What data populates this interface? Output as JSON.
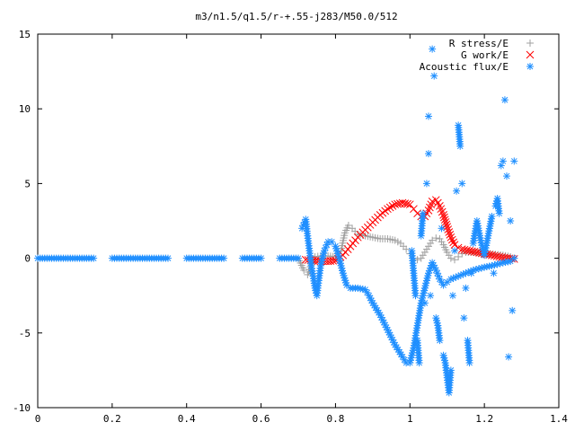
{
  "chart_data": {
    "type": "scatter",
    "title": "m3/n1.5/q1.5/r-+.55-j283/M50.0/512",
    "xlabel": "",
    "ylabel": "",
    "xlim": [
      0,
      1.4
    ],
    "ylim": [
      -10,
      15
    ],
    "x_ticks": [
      0,
      0.2,
      0.4,
      0.6,
      0.8,
      1,
      1.2,
      1.4
    ],
    "x_tick_labels": [
      "0",
      "0.2",
      "0.4",
      "0.6",
      "0.8",
      "1",
      "1.2",
      "1.4"
    ],
    "y_ticks": [
      -10,
      -5,
      0,
      5,
      10,
      15
    ],
    "y_tick_labels": [
      "-10",
      "-5",
      "0",
      "5",
      "10",
      "15"
    ],
    "grid": false,
    "legend_position": "top-right",
    "series": [
      {
        "name": "R stress/E",
        "marker": "plus",
        "color": "#a0a0a0",
        "points": [
          [
            0.7,
            0.0
          ],
          [
            0.715,
            -0.8
          ],
          [
            0.725,
            -1.1
          ],
          [
            0.735,
            -0.4
          ],
          [
            0.745,
            0.1
          ],
          [
            0.76,
            0.15
          ],
          [
            0.78,
            0.15
          ],
          [
            0.8,
            0.1
          ],
          [
            0.815,
            0.5
          ],
          [
            0.825,
            1.7
          ],
          [
            0.835,
            2.2
          ],
          [
            0.845,
            2.0
          ],
          [
            0.86,
            1.6
          ],
          [
            0.88,
            1.5
          ],
          [
            0.9,
            1.4
          ],
          [
            0.92,
            1.3
          ],
          [
            0.94,
            1.3
          ],
          [
            0.96,
            1.2
          ],
          [
            0.975,
            1.0
          ],
          [
            0.99,
            0.6
          ],
          [
            1.0,
            0.3
          ],
          [
            1.01,
            0.0
          ],
          [
            1.02,
            -0.1
          ],
          [
            1.03,
            0.0
          ],
          [
            1.04,
            0.4
          ],
          [
            1.05,
            0.8
          ],
          [
            1.06,
            1.2
          ],
          [
            1.07,
            1.35
          ],
          [
            1.08,
            1.3
          ],
          [
            1.09,
            0.9
          ],
          [
            1.1,
            0.4
          ],
          [
            1.11,
            0.0
          ],
          [
            1.12,
            -0.1
          ],
          [
            1.13,
            0.1
          ],
          [
            1.14,
            0.3
          ],
          [
            1.15,
            0.4
          ],
          [
            1.17,
            0.4
          ],
          [
            1.19,
            0.35
          ],
          [
            1.21,
            0.3
          ],
          [
            1.23,
            0.25
          ],
          [
            1.25,
            0.2
          ],
          [
            1.27,
            0.1
          ],
          [
            1.28,
            0.0
          ]
        ]
      },
      {
        "name": "G work/E",
        "marker": "cross",
        "color": "#ff0000",
        "points": [
          [
            0.72,
            -0.1
          ],
          [
            0.74,
            -0.15
          ],
          [
            0.76,
            -0.2
          ],
          [
            0.78,
            -0.2
          ],
          [
            0.8,
            -0.15
          ],
          [
            0.82,
            0.2
          ],
          [
            0.84,
            0.8
          ],
          [
            0.86,
            1.4
          ],
          [
            0.88,
            1.9
          ],
          [
            0.9,
            2.4
          ],
          [
            0.92,
            2.9
          ],
          [
            0.94,
            3.3
          ],
          [
            0.96,
            3.6
          ],
          [
            0.98,
            3.7
          ],
          [
            1.0,
            3.6
          ],
          [
            1.01,
            3.3
          ],
          [
            1.02,
            3.0
          ],
          [
            1.03,
            2.8
          ],
          [
            1.04,
            2.8
          ],
          [
            1.05,
            3.2
          ],
          [
            1.06,
            3.8
          ],
          [
            1.07,
            3.9
          ],
          [
            1.08,
            3.5
          ],
          [
            1.09,
            2.9
          ],
          [
            1.1,
            2.1
          ],
          [
            1.11,
            1.4
          ],
          [
            1.12,
            0.9
          ],
          [
            1.13,
            0.7
          ],
          [
            1.14,
            0.6
          ],
          [
            1.16,
            0.5
          ],
          [
            1.18,
            0.4
          ],
          [
            1.2,
            0.3
          ],
          [
            1.22,
            0.2
          ],
          [
            1.24,
            0.1
          ],
          [
            1.26,
            0.0
          ],
          [
            1.28,
            -0.05
          ]
        ]
      },
      {
        "name": "Acoustic flux/E",
        "marker": "star",
        "color": "#1f8fff",
        "points": [
          [
            0.0,
            0.0
          ],
          [
            0.05,
            0.0
          ],
          [
            0.1,
            0.0
          ],
          [
            0.15,
            0.0
          ],
          [
            0.2,
            0.0
          ],
          [
            0.25,
            0.0
          ],
          [
            0.3,
            0.0
          ],
          [
            0.35,
            0.0
          ],
          [
            0.4,
            0.0
          ],
          [
            0.45,
            0.0
          ],
          [
            0.5,
            0.0
          ],
          [
            0.55,
            0.0
          ],
          [
            0.6,
            0.0
          ],
          [
            0.65,
            0.0
          ],
          [
            0.7,
            0.0
          ],
          [
            0.71,
            2.0
          ],
          [
            0.72,
            2.6
          ],
          [
            0.725,
            1.5
          ],
          [
            0.73,
            0.5
          ],
          [
            0.735,
            -0.5
          ],
          [
            0.74,
            -1.2
          ],
          [
            0.745,
            -2.0
          ],
          [
            0.75,
            -2.5
          ],
          [
            0.755,
            -1.5
          ],
          [
            0.76,
            -0.5
          ],
          [
            0.77,
            0.5
          ],
          [
            0.78,
            1.1
          ],
          [
            0.79,
            1.1
          ],
          [
            0.8,
            0.8
          ],
          [
            0.81,
            0.0
          ],
          [
            0.82,
            -1.0
          ],
          [
            0.83,
            -1.8
          ],
          [
            0.84,
            -2.0
          ],
          [
            0.86,
            -2.0
          ],
          [
            0.88,
            -2.1
          ],
          [
            0.89,
            -2.5
          ],
          [
            0.9,
            -3.0
          ],
          [
            0.92,
            -3.8
          ],
          [
            0.94,
            -4.8
          ],
          [
            0.96,
            -5.8
          ],
          [
            0.98,
            -6.6
          ],
          [
            0.99,
            -7.0
          ],
          [
            1.0,
            -7.0
          ],
          [
            1.01,
            -6.0
          ],
          [
            1.02,
            -4.5
          ],
          [
            1.03,
            -3.0
          ],
          [
            1.04,
            -2.0
          ],
          [
            1.05,
            -1.0
          ],
          [
            1.06,
            -0.3
          ],
          [
            1.07,
            -0.8
          ],
          [
            1.08,
            -1.4
          ],
          [
            1.09,
            -1.8
          ],
          [
            1.1,
            -1.6
          ],
          [
            1.11,
            -1.4
          ],
          [
            1.13,
            -1.2
          ],
          [
            1.15,
            -1.0
          ],
          [
            1.17,
            -0.8
          ],
          [
            1.2,
            -0.6
          ],
          [
            1.22,
            -0.5
          ],
          [
            1.25,
            -0.3
          ],
          [
            1.27,
            -0.2
          ],
          [
            1.28,
            0.0
          ],
          [
            1.005,
            0.5
          ],
          [
            1.01,
            -1.0
          ],
          [
            1.015,
            -2.5
          ],
          [
            1.02,
            -5.5
          ],
          [
            1.025,
            -7.0
          ],
          [
            1.03,
            1.5
          ],
          [
            1.035,
            3.0
          ],
          [
            1.04,
            -3.0
          ],
          [
            1.045,
            5.0
          ],
          [
            1.05,
            9.5
          ],
          [
            1.05,
            7.0
          ],
          [
            1.055,
            -2.5
          ],
          [
            1.06,
            14.0
          ],
          [
            1.065,
            12.2
          ],
          [
            1.07,
            -4.0
          ],
          [
            1.075,
            -4.5
          ],
          [
            1.08,
            -5.5
          ],
          [
            1.085,
            2.0
          ],
          [
            1.09,
            -6.5
          ],
          [
            1.095,
            -7.0
          ],
          [
            1.1,
            -8.0
          ],
          [
            1.105,
            -9.0
          ],
          [
            1.11,
            -7.5
          ],
          [
            1.115,
            -2.5
          ],
          [
            1.12,
            0.5
          ],
          [
            1.125,
            4.5
          ],
          [
            1.13,
            8.9
          ],
          [
            1.135,
            7.5
          ],
          [
            1.14,
            5.0
          ],
          [
            1.145,
            -4.0
          ],
          [
            1.15,
            -2.0
          ],
          [
            1.155,
            -5.5
          ],
          [
            1.16,
            -7.0
          ],
          [
            1.165,
            -1.0
          ],
          [
            1.17,
            1.0
          ],
          [
            1.18,
            2.5
          ],
          [
            1.19,
            1.2
          ],
          [
            1.2,
            0.2
          ],
          [
            1.21,
            1.5
          ],
          [
            1.22,
            2.8
          ],
          [
            1.225,
            -1.0
          ],
          [
            1.23,
            3.5
          ],
          [
            1.235,
            4.0
          ],
          [
            1.24,
            3.0
          ],
          [
            1.245,
            6.2
          ],
          [
            1.25,
            6.5
          ],
          [
            1.255,
            10.6
          ],
          [
            1.26,
            5.5
          ],
          [
            1.265,
            -6.6
          ],
          [
            1.27,
            2.5
          ],
          [
            1.275,
            -3.5
          ],
          [
            1.28,
            6.5
          ]
        ]
      }
    ]
  }
}
